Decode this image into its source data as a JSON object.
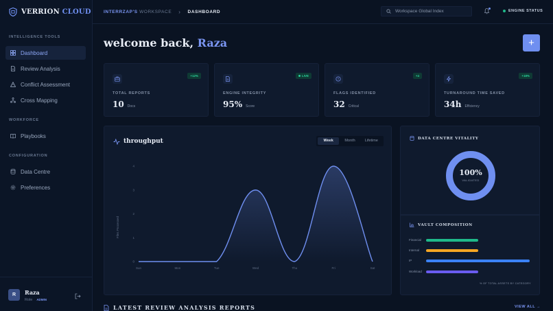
{
  "brand": {
    "name_part1": "VERRION",
    "name_part2": "CLOUD"
  },
  "sidebar": {
    "sections": [
      {
        "label": "INTELLIGENCE TOOLS"
      },
      {
        "label": "WORKFORCE"
      },
      {
        "label": "CONFIGURATION"
      }
    ],
    "items": [
      {
        "label": "Dashboard",
        "icon": "grid-icon",
        "active": true
      },
      {
        "label": "Review Analysis",
        "icon": "document-icon"
      },
      {
        "label": "Conflict Assessment",
        "icon": "warning-icon"
      },
      {
        "label": "Cross Mapping",
        "icon": "network-icon"
      },
      {
        "label": "Playbooks",
        "icon": "book-icon"
      },
      {
        "label": "Data Centre",
        "icon": "database-icon"
      },
      {
        "label": "Preferences",
        "icon": "gear-icon"
      }
    ],
    "user": {
      "initial": "R",
      "name": "Raza",
      "role": "Role",
      "badge": "ADMIN"
    }
  },
  "header": {
    "workspace": "INTERRZAP'S",
    "workspace_suffix": "WORKSPACE",
    "separator": "›",
    "current": "DASHBOARD",
    "search_placeholder": "Workspace Global Index",
    "engine_status": "ENGINE STATUS"
  },
  "welcome": {
    "prefix": "welcome back,",
    "name": "Raza",
    "add_label": "+"
  },
  "stats": [
    {
      "label": "TOTAL REPORTS",
      "value": "10",
      "unit": "Docs",
      "badge": "+12%",
      "icon": "briefcase-icon"
    },
    {
      "label": "ENGINE INTEGRITY",
      "value": "95%",
      "unit": "Score",
      "badge": "LIVE",
      "icon": "file-icon"
    },
    {
      "label": "FLAGS IDENTIFIED",
      "value": "32",
      "unit": "Critical",
      "badge": "+4",
      "icon": "alert-circle-icon"
    },
    {
      "label": "TURNAROUND TIME SAVED",
      "value": "34h",
      "unit": "Efficiency",
      "badge": "+18%",
      "icon": "bolt-icon"
    }
  ],
  "throughput": {
    "title": "throughput",
    "tabs": [
      "Week",
      "Month",
      "Lifetime"
    ],
    "active_tab": "Week"
  },
  "chart_data": {
    "type": "line",
    "categories": [
      "Sun",
      "Mon",
      "Tue",
      "Wed",
      "Thu",
      "Fri",
      "Sat"
    ],
    "values": [
      0,
      0,
      0,
      3,
      0,
      4,
      0
    ],
    "ylabel": "Files Processed",
    "ylim": [
      0,
      4
    ],
    "yticks": [
      0,
      1,
      2,
      3,
      4
    ],
    "grid": false,
    "color": "#6f8ff0"
  },
  "vitality": {
    "title": "DATA CENTRE VITALITY",
    "value": "100%",
    "sub": "VALIDATED",
    "fraction": 1.0,
    "color": "#6f8ff0"
  },
  "vault": {
    "title": "VAULT COMPOSITION",
    "items": [
      {
        "label": "Financial",
        "fraction": 0.5,
        "color": "#1fb98a"
      },
      {
        "label": "Internal",
        "fraction": 0.5,
        "color": "#f5a623"
      },
      {
        "label": "IP",
        "fraction": 1.0,
        "color": "#3b82f6"
      },
      {
        "label": "Workload",
        "fraction": 0.5,
        "color": "#6a5cf0"
      }
    ],
    "footnote": "% OF TOTAL ASSETS BY CATEGORY"
  },
  "latest": {
    "title": "LATEST REVIEW ANALYSIS REPORTS",
    "view_all": "VIEW ALL →"
  }
}
